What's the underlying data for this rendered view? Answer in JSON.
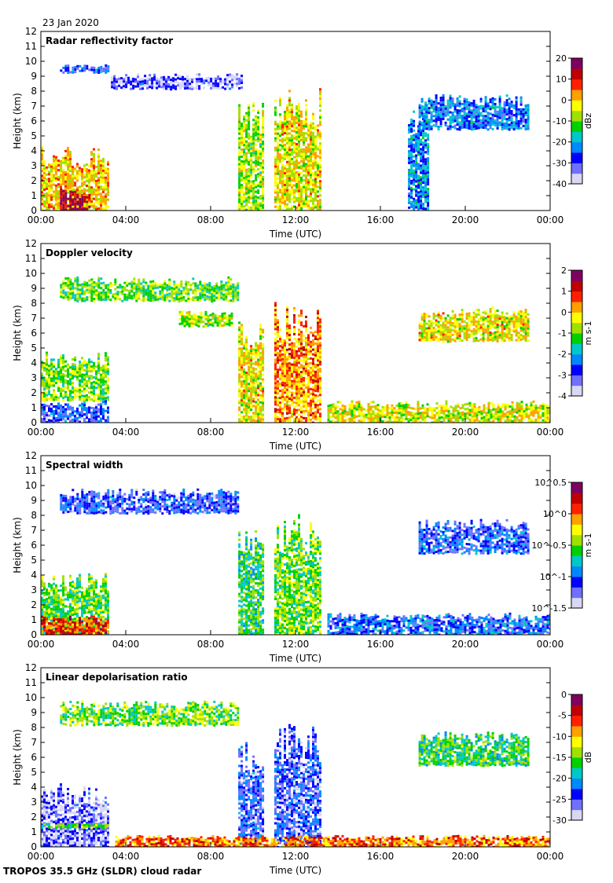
{
  "date": "23 Jan 2020",
  "footer": "TROPOS 35.5 GHz (SLDR) cloud radar",
  "chart_data": [
    {
      "type": "heatmap",
      "title": "Radar reflectivity factor",
      "xlabel": "Time (UTC)",
      "ylabel": "Height (km)",
      "xlim": [
        0,
        24
      ],
      "ylim": [
        0,
        12
      ],
      "x_ticks": [
        "00:00",
        "04:00",
        "08:00",
        "12:00",
        "16:00",
        "20:00",
        "00:00"
      ],
      "y_ticks": [
        "0",
        "1",
        "2",
        "3",
        "4",
        "5",
        "6",
        "7",
        "8",
        "9",
        "10",
        "11",
        "12"
      ],
      "colorbar": {
        "label": "dBz",
        "range": [
          -40,
          20
        ],
        "ticks": [
          "20",
          "10",
          "0",
          "-10",
          "-20",
          "-30",
          "-40"
        ]
      },
      "features": [
        {
          "t": [
            0,
            3.2
          ],
          "h": [
            0,
            4.3
          ],
          "level": 0.65
        },
        {
          "t": [
            0.9,
            2.3
          ],
          "h": [
            0,
            1.5
          ],
          "level": 0.92
        },
        {
          "t": [
            0.9,
            3.2
          ],
          "h": [
            9.3,
            9.8
          ],
          "level": 0.22
        },
        {
          "t": [
            3.3,
            9.5
          ],
          "h": [
            8.2,
            9.2
          ],
          "level": 0.12
        },
        {
          "t": [
            9.3,
            10.5
          ],
          "h": [
            0,
            7.5
          ],
          "level": 0.55
        },
        {
          "t": [
            11.0,
            13.2
          ],
          "h": [
            0,
            8.3
          ],
          "level": 0.62
        },
        {
          "t": [
            17.3,
            18.2
          ],
          "h": [
            0,
            7.5
          ],
          "level": 0.3
        },
        {
          "t": [
            17.8,
            23.0
          ],
          "h": [
            5.5,
            7.8
          ],
          "level": 0.28
        }
      ]
    },
    {
      "type": "heatmap",
      "title": "Doppler velocity",
      "xlabel": "Time (UTC)",
      "ylabel": "Height (km)",
      "xlim": [
        0,
        24
      ],
      "ylim": [
        0,
        12
      ],
      "x_ticks": [
        "00:00",
        "04:00",
        "08:00",
        "12:00",
        "16:00",
        "20:00",
        "00:00"
      ],
      "y_ticks": [
        "0",
        "1",
        "2",
        "3",
        "4",
        "5",
        "6",
        "7",
        "8",
        "9",
        "10",
        "11",
        "12"
      ],
      "colorbar": {
        "label": "m s-1",
        "range": [
          -4,
          2
        ],
        "ticks": [
          "2",
          "1",
          "0",
          "-1",
          "-2",
          "-3",
          "-4"
        ]
      },
      "features": [
        {
          "t": [
            0,
            3.2
          ],
          "h": [
            1.5,
            4.8
          ],
          "level": 0.52
        },
        {
          "t": [
            0,
            3.2
          ],
          "h": [
            0,
            1.5
          ],
          "level": 0.2
        },
        {
          "t": [
            0.9,
            9.3
          ],
          "h": [
            8.2,
            9.8
          ],
          "level": 0.5
        },
        {
          "t": [
            6.5,
            9.0
          ],
          "h": [
            6.5,
            7.5
          ],
          "level": 0.55
        },
        {
          "t": [
            9.3,
            10.5
          ],
          "h": [
            0,
            7.5
          ],
          "level": 0.62
        },
        {
          "t": [
            11.0,
            13.2
          ],
          "h": [
            0,
            8.3
          ],
          "level": 0.72
        },
        {
          "t": [
            17.8,
            23.0
          ],
          "h": [
            5.5,
            7.8
          ],
          "level": 0.62
        },
        {
          "t": [
            13.5,
            24
          ],
          "h": [
            0,
            1.5
          ],
          "level": 0.6
        }
      ]
    },
    {
      "type": "heatmap",
      "title": "Spectral width",
      "xlabel": "Time (UTC)",
      "ylabel": "Height (km)",
      "xlim": [
        0,
        24
      ],
      "ylim": [
        0,
        12
      ],
      "x_ticks": [
        "00:00",
        "04:00",
        "08:00",
        "12:00",
        "16:00",
        "20:00",
        "00:00"
      ],
      "y_ticks": [
        "0",
        "1",
        "2",
        "3",
        "4",
        "5",
        "6",
        "7",
        "8",
        "9",
        "10",
        "11",
        "12"
      ],
      "colorbar": {
        "label": "m s-1",
        "range": [
          -1.5,
          0.5
        ],
        "ticks": [
          "10^0.5",
          "10^0",
          "10^-0.5",
          "10^-1",
          "10^-1.5"
        ]
      },
      "features": [
        {
          "t": [
            0,
            3.2
          ],
          "h": [
            0,
            4.3
          ],
          "level": 0.48
        },
        {
          "t": [
            0,
            3.2
          ],
          "h": [
            0,
            1.3
          ],
          "level": 0.8
        },
        {
          "t": [
            0.9,
            9.3
          ],
          "h": [
            8.2,
            9.8
          ],
          "level": 0.2
        },
        {
          "t": [
            9.3,
            10.5
          ],
          "h": [
            0,
            7.5
          ],
          "level": 0.45
        },
        {
          "t": [
            11.0,
            13.2
          ],
          "h": [
            0,
            8.3
          ],
          "level": 0.5
        },
        {
          "t": [
            17.8,
            23.0
          ],
          "h": [
            5.5,
            7.8
          ],
          "level": 0.22
        },
        {
          "t": [
            13.5,
            24
          ],
          "h": [
            0,
            1.5
          ],
          "level": 0.25
        }
      ]
    },
    {
      "type": "heatmap",
      "title": "Linear depolarisation ratio",
      "xlabel": "Time (UTC)",
      "ylabel": "Height (km)",
      "xlim": [
        0,
        24
      ],
      "ylim": [
        0,
        12
      ],
      "x_ticks": [
        "00:00",
        "04:00",
        "08:00",
        "12:00",
        "16:00",
        "20:00",
        "00:00"
      ],
      "y_ticks": [
        "0",
        "1",
        "2",
        "3",
        "4",
        "5",
        "6",
        "7",
        "8",
        "9",
        "10",
        "11",
        "12"
      ],
      "colorbar": {
        "label": "dB",
        "range": [
          -30,
          0
        ],
        "ticks": [
          "0",
          "-5",
          "-10",
          "-15",
          "-20",
          "-25",
          "-30"
        ]
      },
      "features": [
        {
          "t": [
            0,
            3.2
          ],
          "h": [
            0,
            4.3
          ],
          "level": 0.12
        },
        {
          "t": [
            0,
            3.2
          ],
          "h": [
            1.3,
            1.6
          ],
          "level": 0.5
        },
        {
          "t": [
            0.9,
            9.3
          ],
          "h": [
            8.2,
            9.8
          ],
          "level": 0.5
        },
        {
          "t": [
            9.3,
            10.5
          ],
          "h": [
            0,
            7.5
          ],
          "level": 0.2
        },
        {
          "t": [
            11.0,
            13.2
          ],
          "h": [
            0,
            8.3
          ],
          "level": 0.18
        },
        {
          "t": [
            17.8,
            23.0
          ],
          "h": [
            5.5,
            7.8
          ],
          "level": 0.45
        },
        {
          "t": [
            3.5,
            24
          ],
          "h": [
            0,
            0.8
          ],
          "level": 0.75
        }
      ]
    }
  ]
}
